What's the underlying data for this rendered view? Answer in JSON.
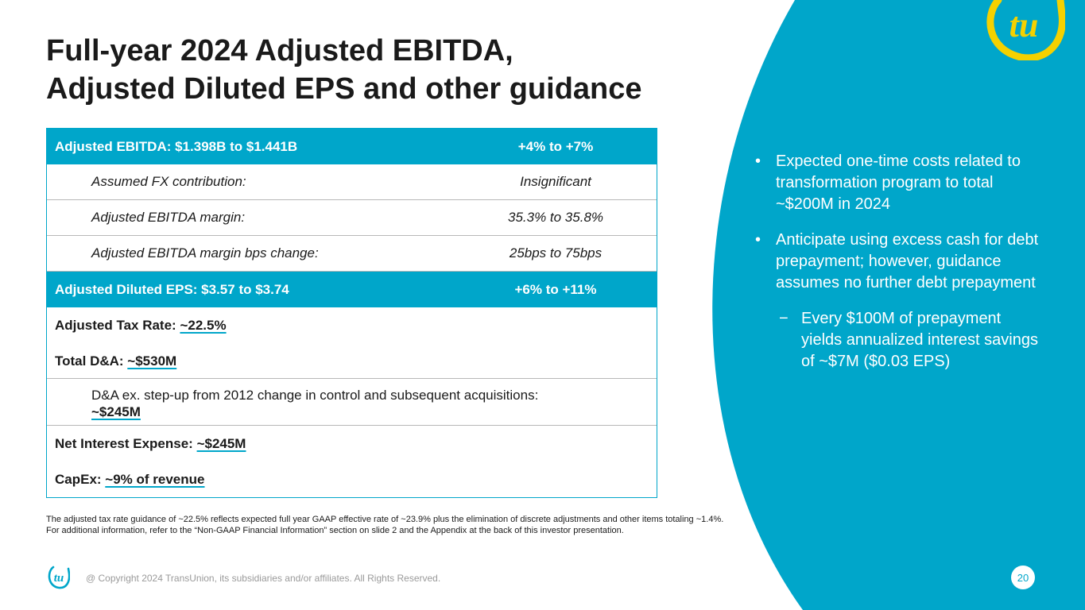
{
  "colors": {
    "accent": "#00a6ca",
    "logo_yellow": "#f5d100"
  },
  "title": {
    "line1": "Full-year 2024 Adjusted EBITDA,",
    "line2": "Adjusted Diluted EPS and other guidance"
  },
  "table": {
    "ebitda": {
      "label": "Adjusted EBITDA: $1.398B to $1.441B",
      "value": "+4% to +7%"
    },
    "fx": {
      "label": "Assumed FX contribution:",
      "value": "Insignificant"
    },
    "margin": {
      "label": "Adjusted EBITDA margin:",
      "value": "35.3% to 35.8%"
    },
    "margin_bps": {
      "label": "Adjusted EBITDA margin bps change:",
      "value": "25bps to 75bps"
    },
    "eps": {
      "label": "Adjusted Diluted EPS: $3.57 to $3.74",
      "value": "+6% to +11%"
    },
    "tax": {
      "label": "Adjusted Tax Rate: ",
      "value": "~22.5%"
    },
    "da": {
      "label": "Total D&A: ",
      "value": "~$530M"
    },
    "da_ex": {
      "label": "D&A ex. step-up from 2012 change in control and subsequent acquisitions:",
      "value": "~$245M"
    },
    "interest": {
      "label": "Net Interest Expense: ",
      "value": "~$245M"
    },
    "capex": {
      "label": "CapEx: ",
      "value": "~9% of revenue"
    }
  },
  "footnote": {
    "line1": "The adjusted tax rate guidance of ~22.5% reflects expected full year GAAP effective rate of ~23.9% plus the elimination of discrete adjustments and other items totaling ~1.4%.",
    "line2": "For additional information, refer to the “Non-GAAP Financial Information” section on slide 2 and the Appendix at the back of this investor presentation."
  },
  "bullets": {
    "marker": "•",
    "dash": "−",
    "b1": "Expected one-time costs related to transformation program to total ~$200M in 2024",
    "b2": "Anticipate using excess cash for debt prepayment; however, guidance assumes no further debt prepayment",
    "sub1": "Every $100M of prepayment yields annualized interest savings of ~$7M ($0.03 EPS)"
  },
  "footer": {
    "copyright": "@ Copyright 2024 TransUnion, its subsidiaries and/or affiliates.  All Rights Reserved.",
    "page": "20"
  },
  "logo": {
    "text": "tu"
  }
}
